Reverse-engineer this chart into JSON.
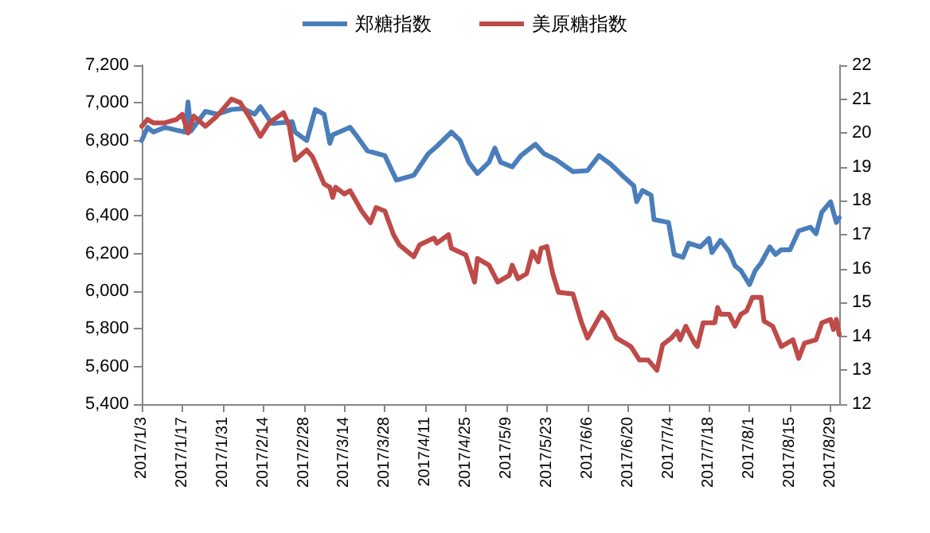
{
  "chart_data": {
    "type": "line",
    "legend": "top",
    "grid": false,
    "marker": "none",
    "line_style": "solid",
    "xlim": [
      "2017-01-03",
      "2017-09-01"
    ],
    "xticks": [
      {
        "value": "2017-01-03",
        "label": "2017/1/3"
      },
      {
        "value": "2017-01-17",
        "label": "2017/1/17"
      },
      {
        "value": "2017-01-31",
        "label": "2017/1/31"
      },
      {
        "value": "2017-02-14",
        "label": "2017/2/14"
      },
      {
        "value": "2017-02-28",
        "label": "2017/2/28"
      },
      {
        "value": "2017-03-14",
        "label": "2017/3/14"
      },
      {
        "value": "2017-03-28",
        "label": "2017/3/28"
      },
      {
        "value": "2017-04-11",
        "label": "2017/4/11"
      },
      {
        "value": "2017-04-25",
        "label": "2017/4/25"
      },
      {
        "value": "2017-05-09",
        "label": "2017/5/9"
      },
      {
        "value": "2017-05-23",
        "label": "2017/5/23"
      },
      {
        "value": "2017-06-06",
        "label": "2017/6/6"
      },
      {
        "value": "2017-06-20",
        "label": "2017/6/20"
      },
      {
        "value": "2017-07-04",
        "label": "2017/7/4"
      },
      {
        "value": "2017-07-18",
        "label": "2017/7/18"
      },
      {
        "value": "2017-08-01",
        "label": "2017/8/1"
      },
      {
        "value": "2017-08-15",
        "label": "2017/8/15"
      },
      {
        "value": "2017-08-29",
        "label": "2017/8/29"
      }
    ],
    "ylim": [
      5400,
      7200
    ],
    "yticks": [
      {
        "value": 5400,
        "label": "5,400"
      },
      {
        "value": 5600,
        "label": "5,600"
      },
      {
        "value": 5800,
        "label": "5,800"
      },
      {
        "value": 6000,
        "label": "6,000"
      },
      {
        "value": 6200,
        "label": "6,200"
      },
      {
        "value": 6400,
        "label": "6,400"
      },
      {
        "value": 6600,
        "label": "6,600"
      },
      {
        "value": 6800,
        "label": "6,800"
      },
      {
        "value": 7000,
        "label": "7,000"
      },
      {
        "value": 7200,
        "label": "7,200"
      }
    ],
    "y2lim": [
      12,
      22
    ],
    "y2ticks": [
      12,
      13,
      14,
      15,
      16,
      17,
      18,
      19,
      20,
      21,
      22
    ],
    "series": [
      {
        "name": "郑糖指数",
        "color": "#4a7ebb",
        "x": [
          "2017-01-03",
          "2017-01-05",
          "2017-01-07",
          "2017-01-11",
          "2017-01-15",
          "2017-01-18",
          "2017-01-19",
          "2017-01-20",
          "2017-01-25",
          "2017-01-29",
          "2017-02-03",
          "2017-02-07",
          "2017-02-11",
          "2017-02-13",
          "2017-02-17",
          "2017-02-24",
          "2017-02-25",
          "2017-03-01",
          "2017-03-04",
          "2017-03-07",
          "2017-03-09",
          "2017-03-10",
          "2017-03-16",
          "2017-03-18",
          "2017-03-22",
          "2017-03-28",
          "2017-04-01",
          "2017-04-07",
          "2017-04-12",
          "2017-04-15",
          "2017-04-20",
          "2017-04-23",
          "2017-04-26",
          "2017-04-29",
          "2017-05-03",
          "2017-05-05",
          "2017-05-07",
          "2017-05-11",
          "2017-05-14",
          "2017-05-19",
          "2017-05-22",
          "2017-05-26",
          "2017-06-01",
          "2017-06-06",
          "2017-06-10",
          "2017-06-14",
          "2017-06-18",
          "2017-06-22",
          "2017-06-23",
          "2017-06-25",
          "2017-06-28",
          "2017-06-29",
          "2017-07-04",
          "2017-07-06",
          "2017-07-09",
          "2017-07-11",
          "2017-07-15",
          "2017-07-18",
          "2017-07-19",
          "2017-07-22",
          "2017-07-25",
          "2017-07-27",
          "2017-07-29",
          "2017-08-01",
          "2017-08-03",
          "2017-08-05",
          "2017-08-08",
          "2017-08-10",
          "2017-08-12",
          "2017-08-15",
          "2017-08-18",
          "2017-08-22",
          "2017-08-24",
          "2017-08-26",
          "2017-08-29",
          "2017-08-31",
          "2017-09-01"
        ],
        "values": [
          6800,
          6870,
          6845,
          6870,
          6855,
          6845,
          7005,
          6850,
          6955,
          6940,
          6965,
          6970,
          6940,
          6980,
          6890,
          6900,
          6845,
          6800,
          6965,
          6940,
          6785,
          6830,
          6870,
          6830,
          6745,
          6720,
          6590,
          6615,
          6730,
          6770,
          6845,
          6800,
          6685,
          6625,
          6685,
          6760,
          6685,
          6660,
          6720,
          6780,
          6730,
          6700,
          6635,
          6640,
          6720,
          6675,
          6615,
          6560,
          6475,
          6535,
          6510,
          6380,
          6365,
          6195,
          6180,
          6255,
          6235,
          6280,
          6205,
          6270,
          6210,
          6135,
          6110,
          6035,
          6110,
          6150,
          6235,
          6195,
          6220,
          6220,
          6320,
          6340,
          6305,
          6420,
          6475,
          6365,
          6390
        ]
      },
      {
        "name": "美原糖指数",
        "color": "#be4b48",
        "axis": "y2",
        "x": [
          "2017-01-03",
          "2017-01-05",
          "2017-01-07",
          "2017-01-11",
          "2017-01-15",
          "2017-01-17",
          "2017-01-19",
          "2017-01-21",
          "2017-01-25",
          "2017-01-29",
          "2017-02-03",
          "2017-02-06",
          "2017-02-09",
          "2017-02-13",
          "2017-02-16",
          "2017-02-21",
          "2017-02-23",
          "2017-02-25",
          "2017-03-01",
          "2017-03-03",
          "2017-03-07",
          "2017-03-09",
          "2017-03-10",
          "2017-03-11",
          "2017-03-14",
          "2017-03-16",
          "2017-03-20",
          "2017-03-23",
          "2017-03-25",
          "2017-03-28",
          "2017-03-31",
          "2017-04-02",
          "2017-04-07",
          "2017-04-09",
          "2017-04-14",
          "2017-04-15",
          "2017-04-19",
          "2017-04-20",
          "2017-04-25",
          "2017-04-28",
          "2017-04-29",
          "2017-05-03",
          "2017-05-06",
          "2017-05-10",
          "2017-05-11",
          "2017-05-13",
          "2017-05-16",
          "2017-05-18",
          "2017-05-20",
          "2017-05-21",
          "2017-05-23",
          "2017-05-25",
          "2017-05-27",
          "2017-06-01",
          "2017-06-04",
          "2017-06-06",
          "2017-06-09",
          "2017-06-11",
          "2017-06-13",
          "2017-06-16",
          "2017-06-21",
          "2017-06-24",
          "2017-06-27",
          "2017-06-30",
          "2017-07-02",
          "2017-07-05",
          "2017-07-07",
          "2017-07-08",
          "2017-07-10",
          "2017-07-13",
          "2017-07-14",
          "2017-07-16",
          "2017-07-20",
          "2017-07-21",
          "2017-07-22",
          "2017-07-25",
          "2017-07-27",
          "2017-07-29",
          "2017-07-31",
          "2017-08-02",
          "2017-08-05",
          "2017-08-06",
          "2017-08-09",
          "2017-08-12",
          "2017-08-16",
          "2017-08-18",
          "2017-08-20",
          "2017-08-24",
          "2017-08-26",
          "2017-08-29",
          "2017-08-30",
          "2017-08-31",
          "2017-09-01"
        ],
        "values": [
          20.2,
          20.4,
          20.3,
          20.3,
          20.4,
          20.55,
          20.0,
          20.5,
          20.2,
          20.5,
          21.0,
          20.9,
          20.5,
          19.9,
          20.3,
          20.6,
          20.2,
          19.2,
          19.5,
          19.3,
          18.5,
          18.4,
          18.1,
          18.4,
          18.2,
          18.3,
          17.7,
          17.35,
          17.8,
          17.7,
          17.0,
          16.7,
          16.35,
          16.7,
          16.9,
          16.75,
          17.0,
          16.6,
          16.4,
          15.6,
          16.3,
          16.1,
          15.6,
          15.8,
          16.1,
          15.7,
          15.85,
          16.5,
          16.2,
          16.6,
          16.65,
          15.85,
          15.3,
          15.25,
          14.4,
          13.95,
          14.4,
          14.7,
          14.5,
          13.95,
          13.7,
          13.3,
          13.3,
          13.0,
          13.75,
          13.95,
          14.15,
          13.9,
          14.3,
          13.8,
          13.7,
          14.4,
          14.4,
          14.85,
          14.65,
          14.65,
          14.3,
          14.65,
          14.75,
          15.15,
          15.15,
          14.45,
          14.3,
          13.7,
          13.9,
          13.35,
          13.8,
          13.9,
          14.4,
          14.5,
          14.2,
          14.5,
          14.05
        ]
      }
    ]
  }
}
